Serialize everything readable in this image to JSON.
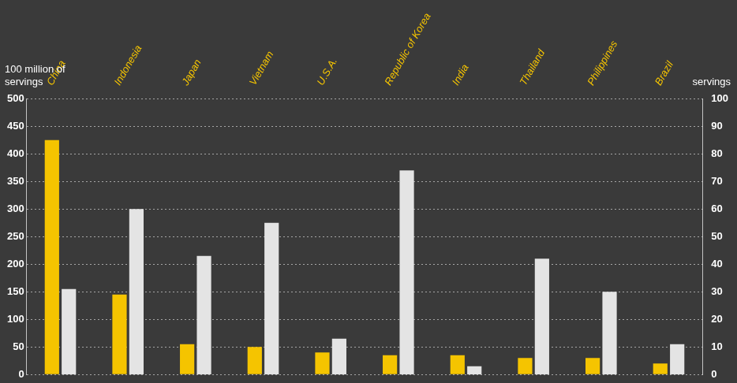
{
  "chart_data": {
    "type": "bar",
    "categories": [
      "China",
      "Indonesia",
      "Japan",
      "Vietnam",
      "U.S.A.",
      "Republic of Korea",
      "India",
      "Thailand",
      "Philippines",
      "Brazil"
    ],
    "series": [
      {
        "color": "#f5c400",
        "values": [
          425,
          145,
          55,
          50,
          40,
          35,
          35,
          30,
          30,
          20
        ]
      },
      {
        "color": "#e4e4e4",
        "values": [
          31,
          60,
          43,
          55,
          13,
          74,
          3,
          42,
          30,
          11
        ],
        "axis": "y2"
      }
    ],
    "ylabel": "100 million of servings",
    "y2label": "servings",
    "ylim": [
      0,
      500
    ],
    "yticks": [
      0,
      50,
      100,
      150,
      200,
      250,
      300,
      350,
      400,
      450,
      500
    ],
    "y2lim": [
      0,
      100
    ],
    "y2ticks": [
      0,
      10,
      20,
      30,
      40,
      50,
      60,
      70,
      80,
      90,
      100
    ],
    "grid": true
  }
}
